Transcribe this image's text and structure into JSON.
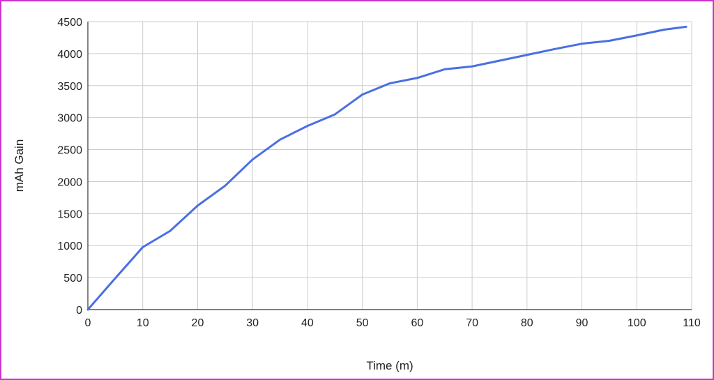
{
  "chart_data": {
    "type": "line",
    "title": "",
    "xlabel": "Time (m)",
    "ylabel": "mAh Gain",
    "xlim": [
      0,
      110
    ],
    "ylim": [
      0,
      4500
    ],
    "x_ticks": [
      0,
      10,
      20,
      30,
      40,
      50,
      60,
      70,
      80,
      90,
      100,
      110
    ],
    "y_ticks": [
      0,
      500,
      1000,
      1500,
      2000,
      2500,
      3000,
      3500,
      4000,
      4500
    ],
    "grid": true,
    "legend": "none",
    "line_color": "#4a6fe3",
    "series": [
      {
        "x": [
          0,
          5,
          10,
          15,
          20,
          25,
          30,
          35,
          40,
          45,
          50,
          55,
          60,
          65,
          70,
          75,
          80,
          85,
          90,
          95,
          100,
          105,
          109
        ],
        "values": [
          0,
          490,
          975,
          1230,
          1625,
          1935,
          2345,
          2655,
          2870,
          3050,
          3360,
          3535,
          3620,
          3755,
          3800,
          3890,
          3980,
          4070,
          4155,
          4200,
          4285,
          4375,
          4420
        ]
      }
    ]
  }
}
